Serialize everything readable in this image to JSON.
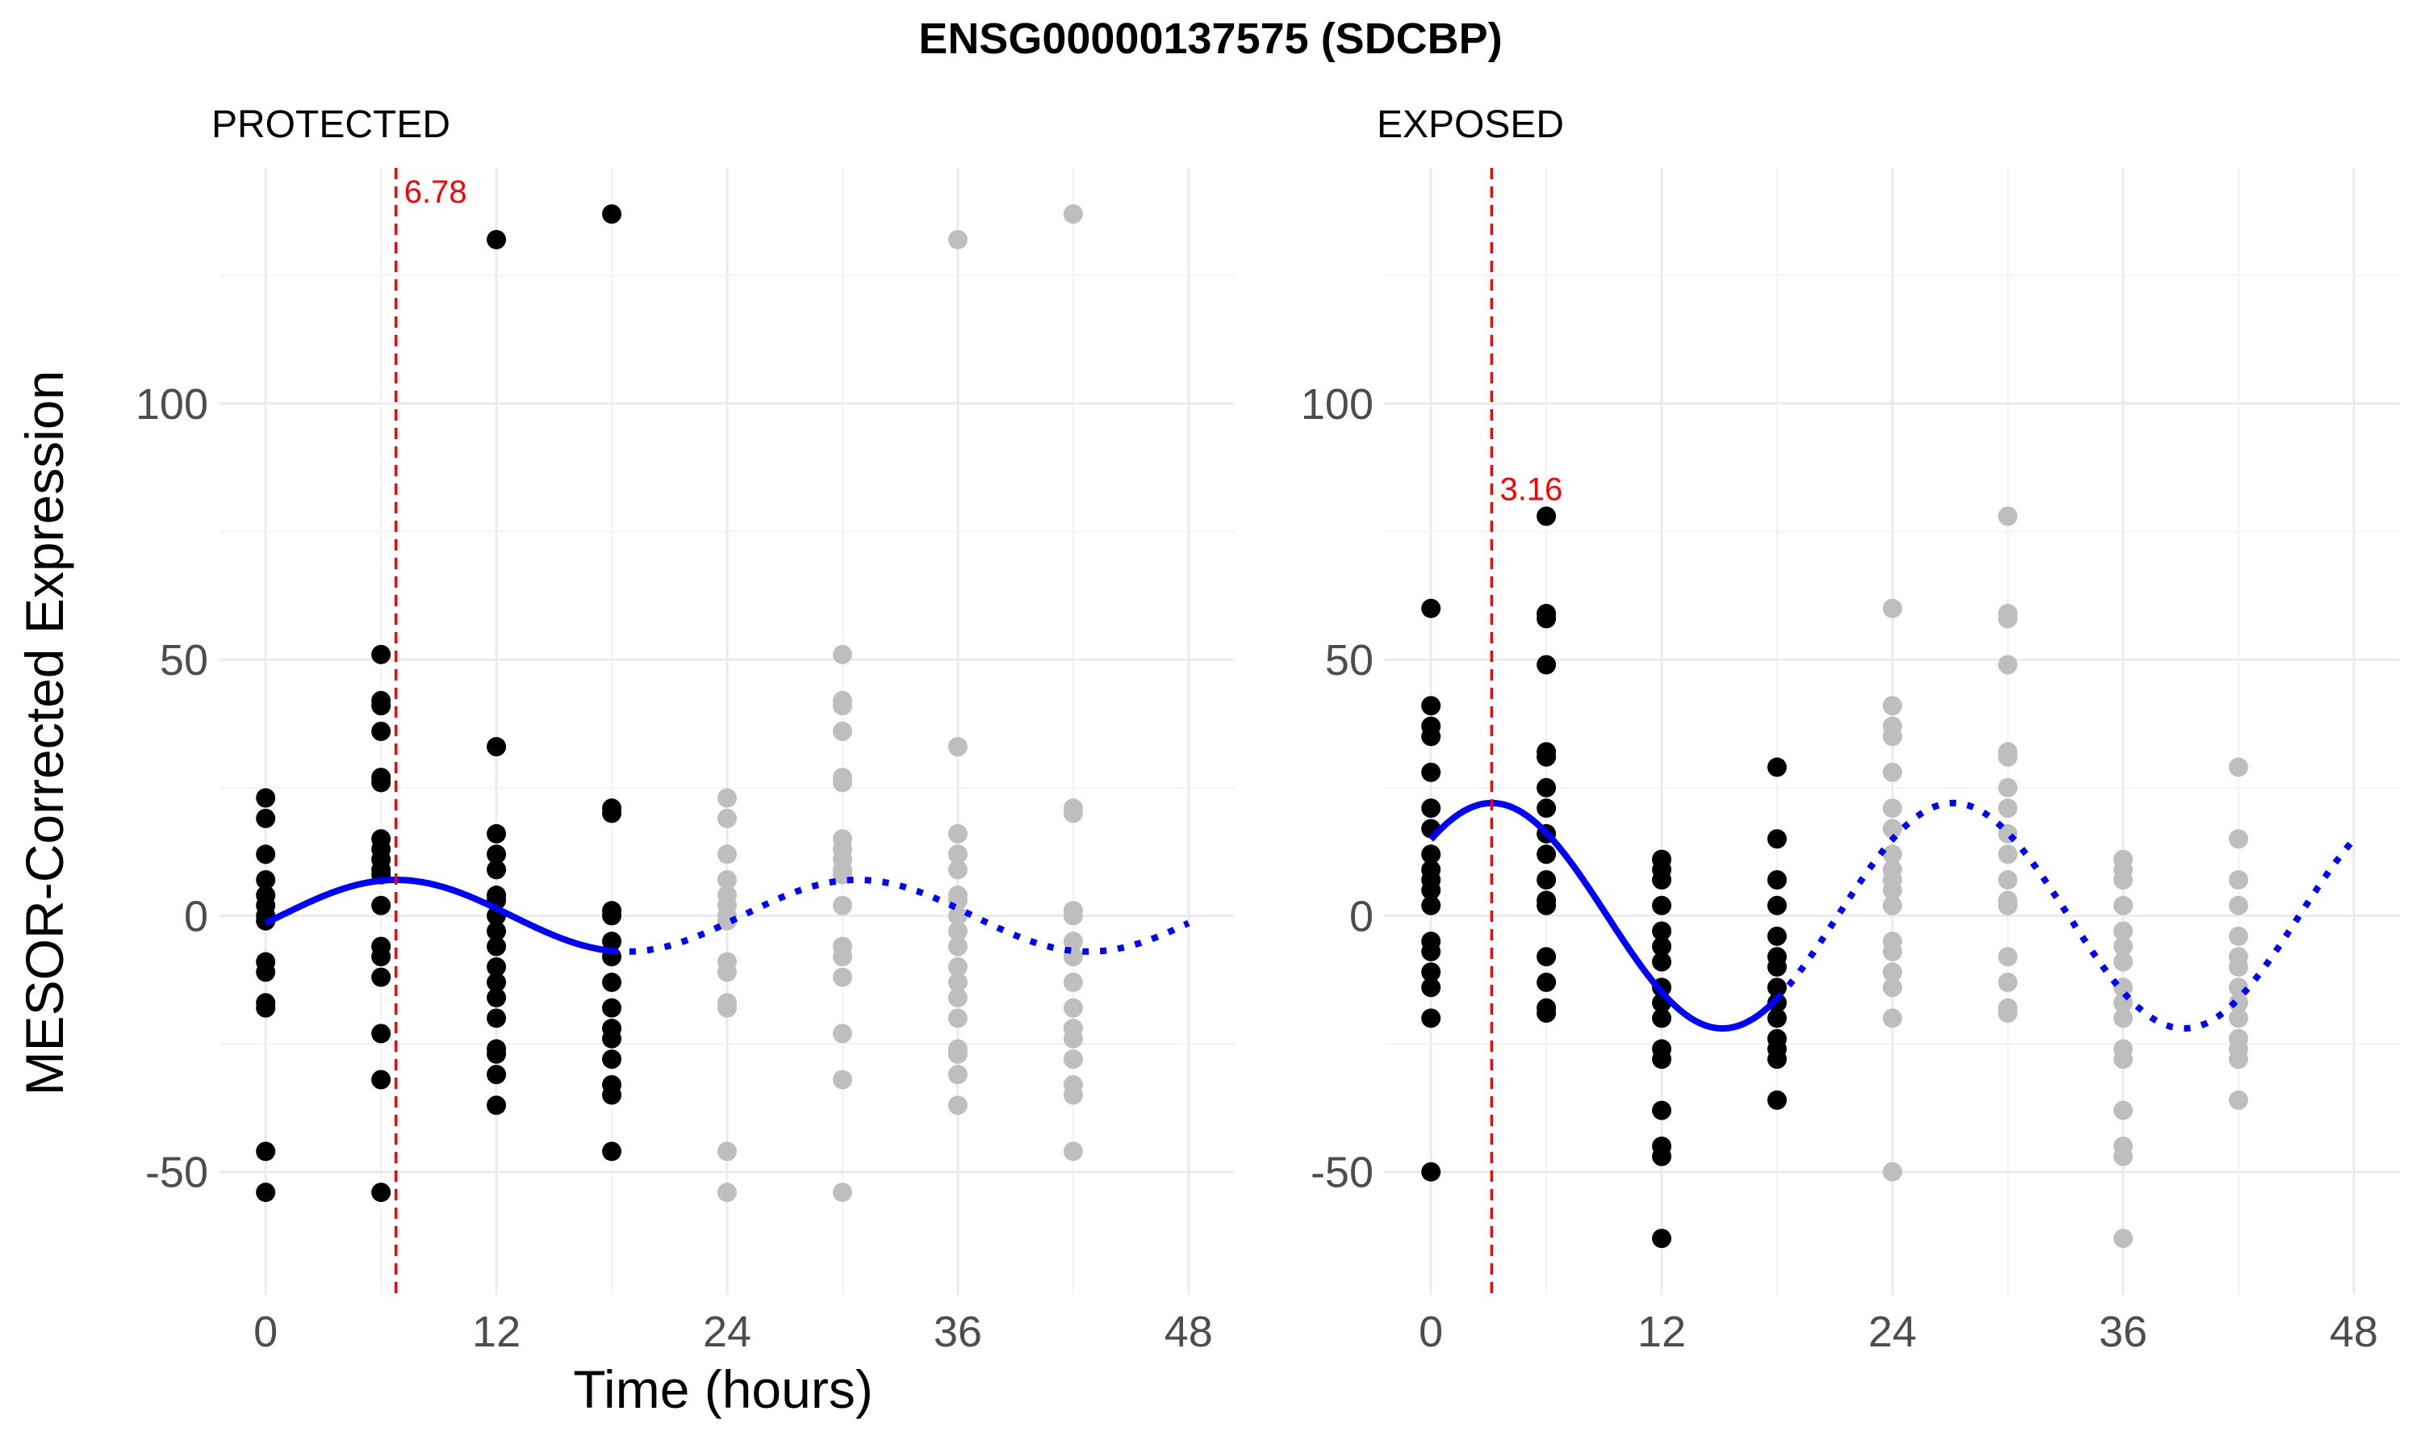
{
  "title": "ENSG00000137575 (SDCBP)",
  "xlabel": "Time (hours)",
  "ylabel": "MESOR-Corrected Expression",
  "colors": {
    "observed": "#000000",
    "replicated": "#bebebe",
    "fit": "#0000ff",
    "acrophase": "#ff0000",
    "grid": "#ebebeb",
    "tick_text": "#4d4d4d"
  },
  "chart_data": [
    {
      "type": "scatter",
      "panel": "PROTECTED",
      "xlim": [
        -2.4,
        50.4
      ],
      "ylim": [
        -74,
        146
      ],
      "x_ticks": [
        0,
        12,
        24,
        36,
        48
      ],
      "y_ticks": [
        -50,
        0,
        50,
        100
      ],
      "grid": true,
      "acrophase": {
        "x": 6.78,
        "label": "6.78"
      },
      "fit": {
        "mesor": 0,
        "amplitude": 7,
        "period": 24,
        "acrophase": 6.78,
        "solid_range": [
          0,
          18
        ],
        "dotted_range": [
          18,
          48
        ]
      },
      "observed": [
        {
          "x": 0,
          "y": [
            23,
            19,
            12,
            7,
            4,
            2,
            0,
            -1,
            -9,
            -11,
            -17,
            -18,
            -46,
            -54
          ]
        },
        {
          "x": 6,
          "y": [
            51,
            42,
            41,
            36,
            27,
            26,
            15,
            13,
            11,
            9,
            8,
            2,
            -6,
            -8,
            -12,
            -23,
            -32,
            -54
          ]
        },
        {
          "x": 12,
          "y": [
            132,
            33,
            16,
            12,
            9,
            4,
            3,
            0,
            -3,
            -6,
            -10,
            -13,
            -16,
            -20,
            -26,
            -27,
            -31,
            -37
          ]
        },
        {
          "x": 18,
          "y": [
            137,
            21,
            20,
            1,
            0,
            -5,
            -8,
            -13,
            -18,
            -22,
            -24,
            -28,
            -33,
            -35,
            -46
          ]
        }
      ],
      "replicated": [
        {
          "x": 24,
          "y": [
            23,
            19,
            12,
            7,
            4,
            2,
            0,
            -1,
            -9,
            -11,
            -17,
            -18,
            -46,
            -54
          ]
        },
        {
          "x": 30,
          "y": [
            51,
            42,
            41,
            36,
            27,
            26,
            15,
            13,
            11,
            9,
            8,
            2,
            -6,
            -8,
            -12,
            -23,
            -32,
            -54
          ]
        },
        {
          "x": 36,
          "y": [
            132,
            33,
            16,
            12,
            9,
            4,
            3,
            0,
            -3,
            -6,
            -10,
            -13,
            -16,
            -20,
            -26,
            -27,
            -31,
            -37
          ]
        },
        {
          "x": 42,
          "y": [
            137,
            21,
            20,
            1,
            0,
            -5,
            -8,
            -13,
            -18,
            -22,
            -24,
            -28,
            -33,
            -35,
            -46
          ]
        }
      ]
    },
    {
      "type": "scatter",
      "panel": "EXPOSED",
      "xlim": [
        -2.4,
        50.4
      ],
      "ylim": [
        -74,
        146
      ],
      "x_ticks": [
        0,
        12,
        24,
        36,
        48
      ],
      "y_ticks": [
        -50,
        0,
        50,
        100
      ],
      "grid": true,
      "acrophase": {
        "x": 3.16,
        "label": "3.16"
      },
      "fit": {
        "mesor": 0,
        "amplitude": 22,
        "period": 24,
        "acrophase": 3.16,
        "solid_range": [
          0,
          18
        ],
        "dotted_range": [
          18,
          48
        ]
      },
      "observed": [
        {
          "x": 0,
          "y": [
            60,
            41,
            37,
            35,
            28,
            21,
            17,
            12,
            9,
            7,
            5,
            2,
            -5,
            -7,
            -11,
            -14,
            -20,
            -50
          ]
        },
        {
          "x": 6,
          "y": [
            78,
            59,
            58,
            49,
            32,
            31,
            25,
            21,
            16,
            12,
            7,
            3,
            2,
            -8,
            -13,
            -18,
            -19
          ]
        },
        {
          "x": 12,
          "y": [
            11,
            9,
            7,
            2,
            -3,
            -6,
            -9,
            -14,
            -17,
            -20,
            -26,
            -28,
            -38,
            -45,
            -47,
            -63
          ]
        },
        {
          "x": 18,
          "y": [
            29,
            15,
            7,
            2,
            -4,
            -8,
            -10,
            -14,
            -17,
            -20,
            -24,
            -26,
            -28,
            -36
          ]
        }
      ],
      "replicated": [
        {
          "x": 24,
          "y": [
            60,
            41,
            37,
            35,
            28,
            21,
            17,
            12,
            9,
            7,
            5,
            2,
            -5,
            -7,
            -11,
            -14,
            -20,
            -50
          ]
        },
        {
          "x": 30,
          "y": [
            78,
            59,
            58,
            49,
            32,
            31,
            25,
            21,
            16,
            12,
            7,
            3,
            2,
            -8,
            -13,
            -18,
            -19
          ]
        },
        {
          "x": 36,
          "y": [
            11,
            9,
            7,
            2,
            -3,
            -6,
            -9,
            -14,
            -17,
            -20,
            -26,
            -28,
            -38,
            -45,
            -47,
            -63
          ]
        },
        {
          "x": 42,
          "y": [
            29,
            15,
            7,
            2,
            -4,
            -8,
            -10,
            -14,
            -17,
            -20,
            -24,
            -26,
            -28,
            -36
          ]
        }
      ]
    }
  ]
}
